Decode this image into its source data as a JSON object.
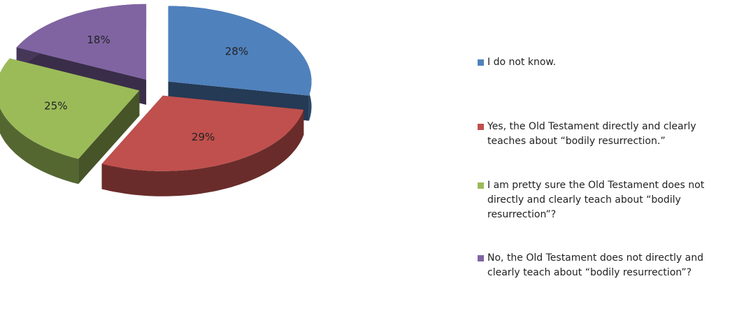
{
  "chart_data": {
    "type": "pie",
    "categories": [
      "I do not know.",
      "Yes, the Old Testament directly and clearly teaches about “bodily resurrection.”",
      "I am pretty sure the Old Testament does not directly and clearly teach about “bodily resurrection”?",
      "No, the Old Testament does not directly and clearly teach about “bodily resurrection”?"
    ],
    "values": [
      28,
      29,
      25,
      18
    ],
    "value_labels": [
      "28%",
      "29%",
      "25%",
      "18%"
    ],
    "colors": [
      "#4f81bd",
      "#c0504d",
      "#9bbb59",
      "#8064a2"
    ],
    "legend": "right"
  }
}
